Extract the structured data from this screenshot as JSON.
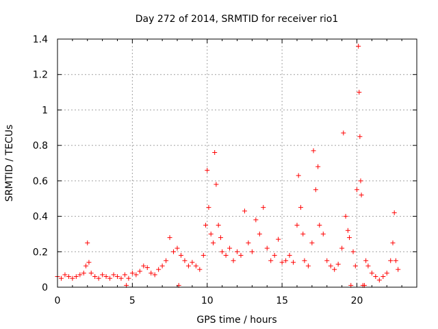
{
  "chart_data": {
    "type": "scatter",
    "title": "Day 272 of 2014, SRMTID for receiver rio1",
    "xlabel": "GPS time / hours",
    "ylabel": "SRMTID / TECUs",
    "xlim": [
      0,
      24
    ],
    "ylim": [
      0,
      1.4
    ],
    "x_ticks": [
      0,
      5,
      10,
      15,
      20
    ],
    "x_tick_labels": [
      "0",
      "5",
      "10",
      "15",
      "20"
    ],
    "y_ticks": [
      0,
      0.2,
      0.4,
      0.6,
      0.8,
      1,
      1.2,
      1.4
    ],
    "y_tick_labels": [
      "0",
      "0.2",
      "0.4",
      "0.6",
      "0.8",
      "1",
      "1.2",
      "1.4"
    ],
    "grid": true,
    "marker": "+",
    "color": "#ff0000",
    "series": [
      {
        "name": "SRMTID rio1",
        "x": [
          0.0,
          0.25,
          0.5,
          0.75,
          1.0,
          1.25,
          1.5,
          1.75,
          1.9,
          2.0,
          2.1,
          2.25,
          2.5,
          2.75,
          3.0,
          3.25,
          3.5,
          3.75,
          4.0,
          4.25,
          4.5,
          4.6,
          4.75,
          5.0,
          5.25,
          5.5,
          5.75,
          6.0,
          6.25,
          6.5,
          6.75,
          7.0,
          7.25,
          7.5,
          7.75,
          8.0,
          8.1,
          8.25,
          8.5,
          8.75,
          9.0,
          9.25,
          9.5,
          9.75,
          9.9,
          10.0,
          10.1,
          10.25,
          10.4,
          10.5,
          10.6,
          10.75,
          10.9,
          11.0,
          11.25,
          11.5,
          11.75,
          12.0,
          12.25,
          12.5,
          12.75,
          13.0,
          13.25,
          13.5,
          13.75,
          14.0,
          14.25,
          14.5,
          14.75,
          15.0,
          15.25,
          15.5,
          15.75,
          16.0,
          16.1,
          16.25,
          16.4,
          16.5,
          16.75,
          17.0,
          17.1,
          17.25,
          17.4,
          17.5,
          17.75,
          18.0,
          18.25,
          18.5,
          18.75,
          19.0,
          19.1,
          19.25,
          19.4,
          19.5,
          19.6,
          19.75,
          19.9,
          20.0,
          20.1,
          20.15,
          20.2,
          20.25,
          20.3,
          20.4,
          20.5,
          20.6,
          20.75,
          21.0,
          21.25,
          21.5,
          21.75,
          22.0,
          22.25,
          22.4,
          22.5,
          22.6,
          22.75
        ],
        "y": [
          0.06,
          0.05,
          0.07,
          0.06,
          0.05,
          0.06,
          0.07,
          0.08,
          0.12,
          0.25,
          0.14,
          0.08,
          0.06,
          0.05,
          0.07,
          0.06,
          0.05,
          0.07,
          0.06,
          0.05,
          0.07,
          0.01,
          0.05,
          0.08,
          0.07,
          0.09,
          0.12,
          0.11,
          0.08,
          0.07,
          0.1,
          0.12,
          0.15,
          0.28,
          0.2,
          0.22,
          0.01,
          0.18,
          0.15,
          0.12,
          0.14,
          0.12,
          0.1,
          0.18,
          0.35,
          0.66,
          0.45,
          0.3,
          0.25,
          0.76,
          0.58,
          0.35,
          0.28,
          0.2,
          0.18,
          0.22,
          0.15,
          0.2,
          0.18,
          0.43,
          0.25,
          0.2,
          0.38,
          0.3,
          0.45,
          0.22,
          0.15,
          0.18,
          0.27,
          0.14,
          0.15,
          0.18,
          0.14,
          0.35,
          0.63,
          0.45,
          0.3,
          0.15,
          0.12,
          0.25,
          0.77,
          0.55,
          0.68,
          0.35,
          0.3,
          0.15,
          0.12,
          0.1,
          0.13,
          0.22,
          0.87,
          0.4,
          0.32,
          0.28,
          0.01,
          0.2,
          0.12,
          0.55,
          1.36,
          1.1,
          0.85,
          0.6,
          0.52,
          0.01,
          0.01,
          0.15,
          0.12,
          0.08,
          0.06,
          0.04,
          0.06,
          0.08,
          0.15,
          0.25,
          0.42,
          0.15,
          0.1
        ]
      }
    ]
  }
}
